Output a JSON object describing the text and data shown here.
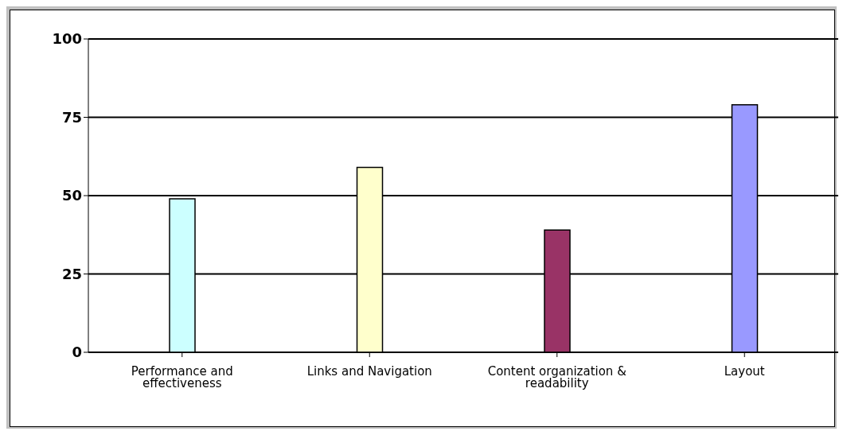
{
  "chart_data": {
    "type": "bar",
    "categories": [
      "Performance and effectiveness",
      "Links and Navigation",
      "Content organization & readability",
      "Layout"
    ],
    "values": [
      49,
      59,
      39,
      79
    ],
    "colors": [
      "#ccffff",
      "#ffffcc",
      "#993366",
      "#9999ff"
    ],
    "ylim": [
      0,
      100
    ],
    "yticks": [
      0,
      25,
      50,
      75,
      100
    ],
    "grid": "y",
    "legend": false
  }
}
